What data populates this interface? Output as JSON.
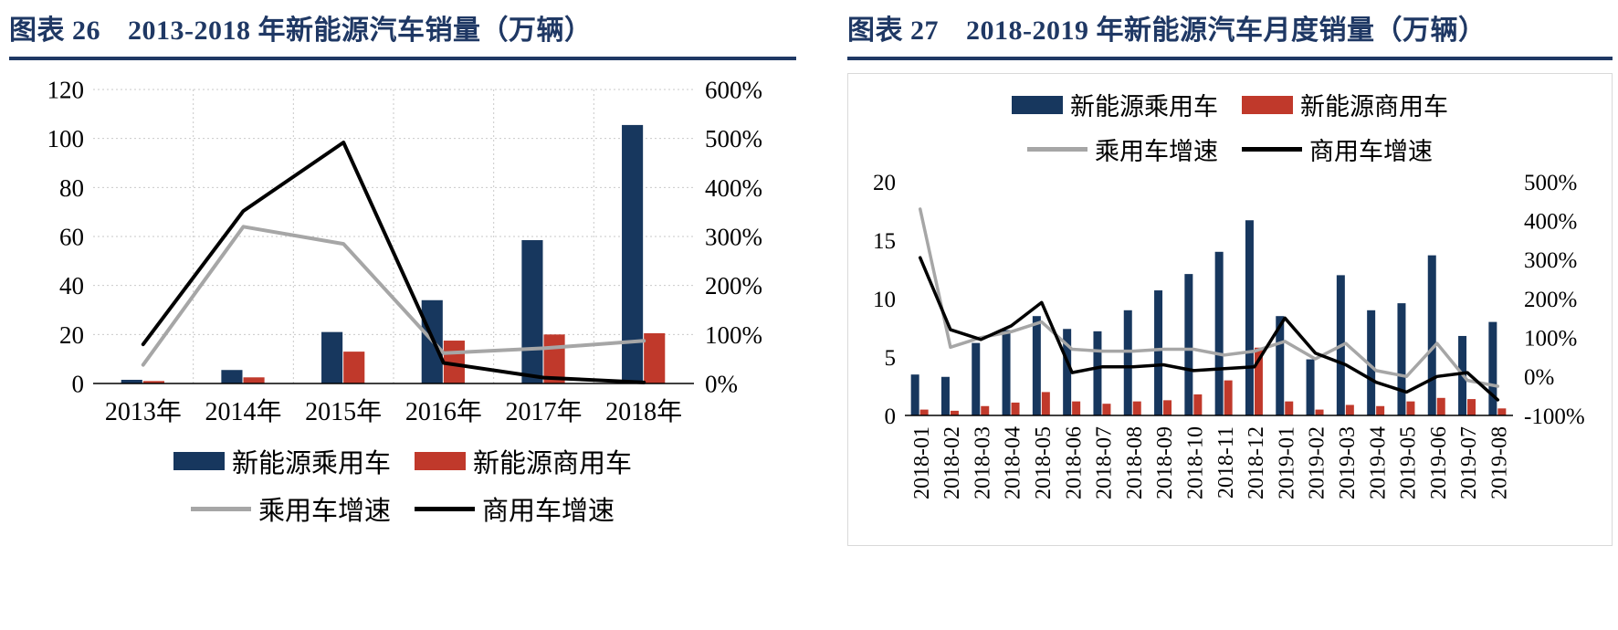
{
  "titles": {
    "left_index": "图表 26",
    "left_text": "2013-2018 年新能源汽车销量（万辆）",
    "right_index": "图表 27",
    "right_text": "2018-2019 年新能源汽车月度销量（万辆）"
  },
  "colors": {
    "title": "#1F3864",
    "rule": "#1F3864",
    "frame_border": "#D9D9D9",
    "grid": "#C9C9C9",
    "axis": "#000000",
    "passenger_bar": "#17375E",
    "commercial_bar": "#C0392B",
    "passenger_line": "#A6A6A6",
    "commercial_line": "#000000"
  },
  "chart_data": [
    {
      "type": "bar+line",
      "title": "2013-2018 年新能源汽车销量（万辆）",
      "categories": [
        "2013年",
        "2014年",
        "2015年",
        "2016年",
        "2017年",
        "2018年"
      ],
      "bar_series": [
        {
          "name": "新能源乘用车",
          "axis": "left",
          "color": "#17375E",
          "values": [
            1.5,
            5.5,
            21,
            34,
            58.5,
            105.5
          ]
        },
        {
          "name": "新能源商用车",
          "axis": "left",
          "color": "#C0392B",
          "values": [
            1,
            2.5,
            13,
            17.5,
            20,
            20.5
          ]
        }
      ],
      "line_series": [
        {
          "name": "乘用车增速",
          "axis": "right",
          "unit": "%",
          "color": "#A6A6A6",
          "values": [
            38,
            320,
            285,
            62,
            72,
            87
          ]
        },
        {
          "name": "商用车增速",
          "axis": "right",
          "unit": "%",
          "color": "#000000",
          "values": [
            80,
            352,
            492,
            42,
            12,
            2
          ]
        }
      ],
      "left_axis": {
        "min": 0,
        "max": 120,
        "step": 20
      },
      "right_axis": {
        "min": 0,
        "max": 600,
        "step": 100,
        "suffix": "%"
      },
      "grid": true,
      "legend_position": "bottom"
    },
    {
      "type": "bar+line",
      "title": "2018-2019 年新能源汽车月度销量（万辆）",
      "categories": [
        "2018-01",
        "2018-02",
        "2018-03",
        "2018-04",
        "2018-05",
        "2018-06",
        "2018-07",
        "2018-08",
        "2018-09",
        "2018-10",
        "2018-11",
        "2018-12",
        "2019-01",
        "2019-02",
        "2019-03",
        "2019-04",
        "2019-05",
        "2019-06",
        "2019-07",
        "2019-08"
      ],
      "bar_series": [
        {
          "name": "新能源乘用车",
          "axis": "left",
          "color": "#17375E",
          "values": [
            3.5,
            3.3,
            6.2,
            7.3,
            8.5,
            7.4,
            7.2,
            9,
            10.7,
            12.1,
            14,
            16.7,
            8.5,
            4.8,
            12,
            9,
            9.6,
            13.7,
            6.8,
            8
          ]
        },
        {
          "name": "新能源商用车",
          "axis": "left",
          "color": "#C0392B",
          "values": [
            0.5,
            0.4,
            0.8,
            1.1,
            2,
            1.2,
            1,
            1.2,
            1.3,
            1.8,
            3,
            5.8,
            1.2,
            0.5,
            0.9,
            0.8,
            1.2,
            1.5,
            1.4,
            0.6
          ]
        }
      ],
      "line_series": [
        {
          "name": "乘用车增速",
          "axis": "right",
          "unit": "%",
          "color": "#A6A6A6",
          "values": [
            430,
            75,
            100,
            115,
            140,
            70,
            65,
            65,
            70,
            70,
            55,
            65,
            90,
            45,
            85,
            15,
            0,
            85,
            -10,
            -25
          ]
        },
        {
          "name": "商用车增速",
          "axis": "right",
          "unit": "%",
          "color": "#000000",
          "values": [
            305,
            120,
            95,
            130,
            190,
            10,
            25,
            25,
            30,
            15,
            20,
            25,
            150,
            60,
            30,
            -15,
            -40,
            0,
            10,
            -60
          ]
        }
      ],
      "left_axis": {
        "min": 0,
        "max": 20,
        "step": 5
      },
      "right_axis": {
        "min": -100,
        "max": 500,
        "step": 100,
        "suffix": "%"
      },
      "grid": false,
      "legend_position": "top"
    }
  ]
}
